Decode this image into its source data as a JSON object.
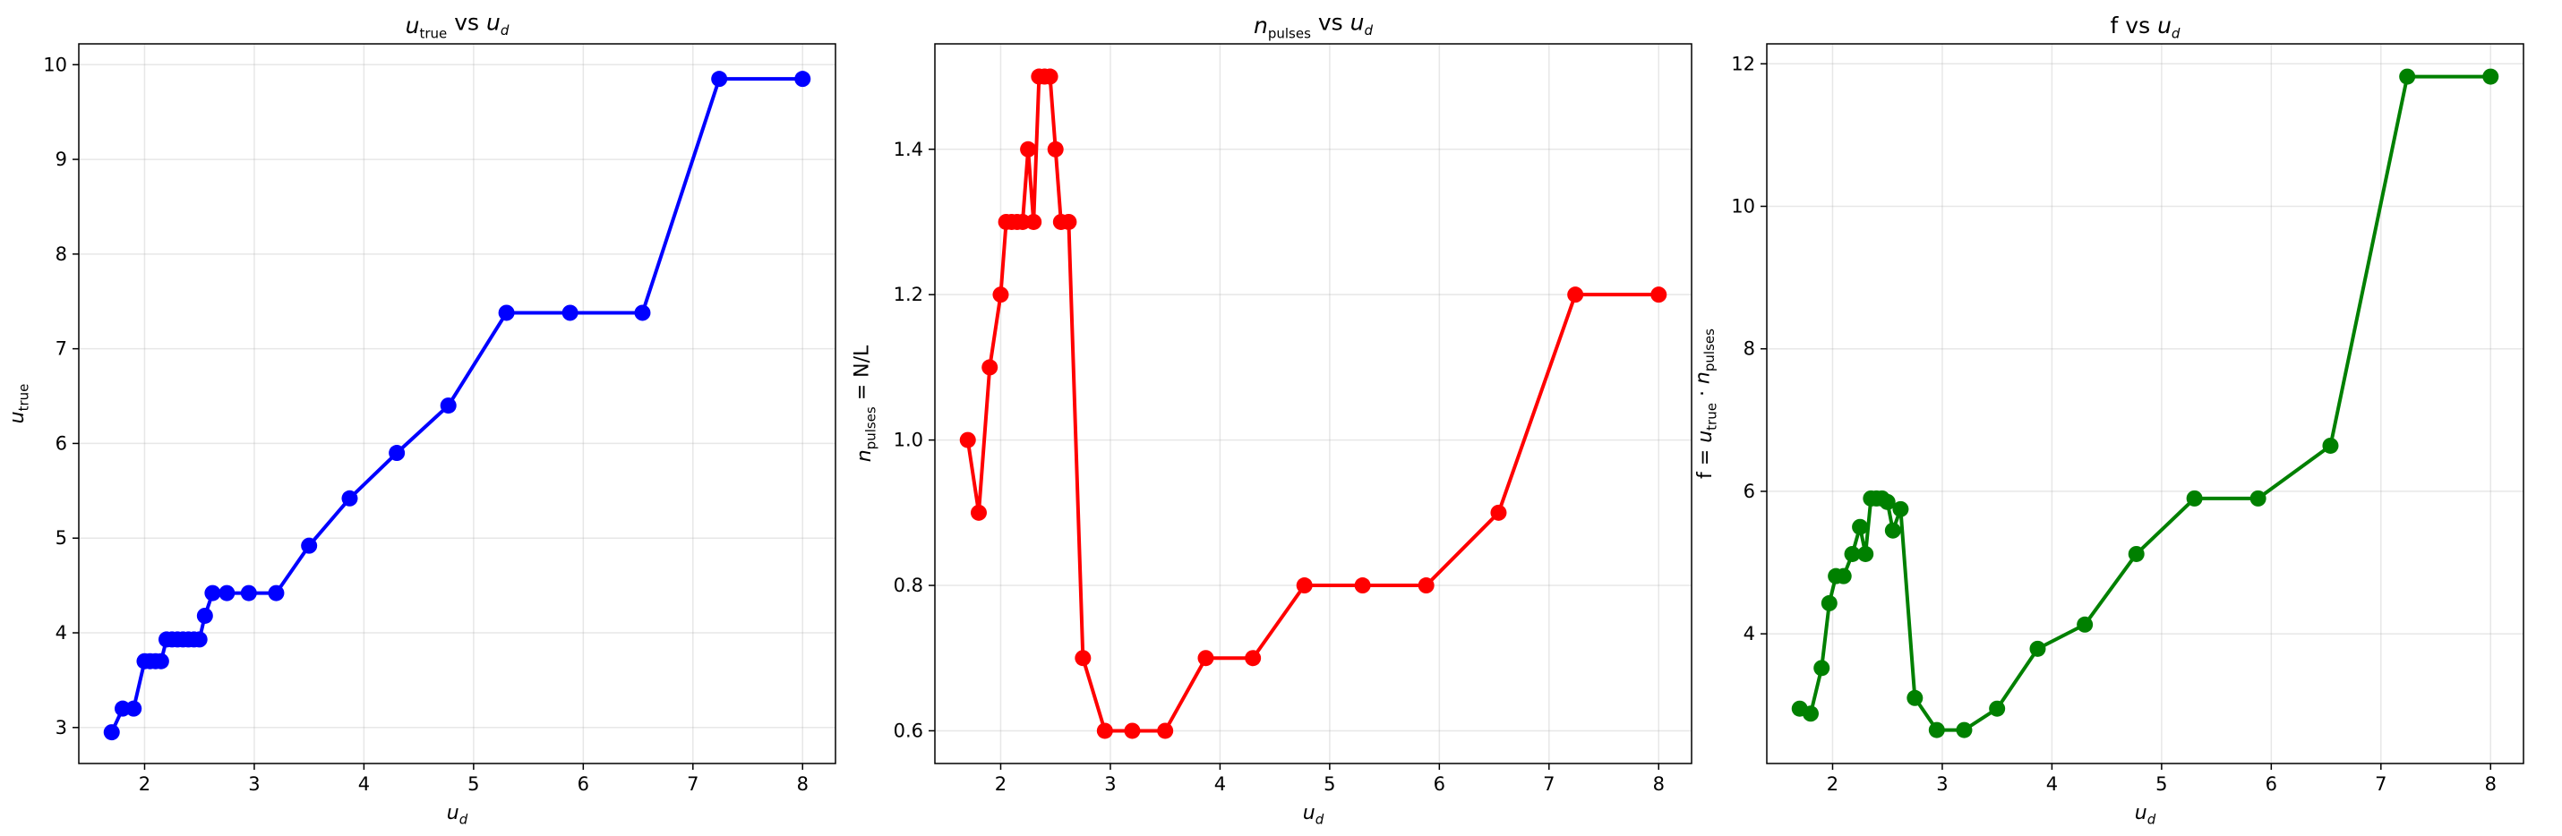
{
  "chart_data": [
    {
      "type": "line",
      "title": "u_true vs u_d",
      "xlabel": "u_d",
      "ylabel": "u_true",
      "xlim": [
        1.4,
        8.3
      ],
      "ylim": [
        2.62,
        10.22
      ],
      "xticks": [
        2,
        3,
        4,
        5,
        6,
        7,
        8
      ],
      "yticks": [
        3,
        4,
        5,
        6,
        7,
        8,
        9,
        10
      ],
      "grid": true,
      "color": "#0000ff",
      "series": [
        {
          "x": [
            1.7,
            1.8,
            1.9,
            2.0,
            2.05,
            2.1,
            2.15,
            2.2,
            2.25,
            2.3,
            2.35,
            2.4,
            2.45,
            2.5,
            2.55,
            2.62,
            2.75,
            2.95,
            3.2,
            3.5,
            3.87,
            4.3,
            4.77,
            5.3,
            5.88,
            6.54,
            7.24,
            8.0
          ],
          "y": [
            2.95,
            3.2,
            3.2,
            3.7,
            3.7,
            3.7,
            3.7,
            3.93,
            3.93,
            3.93,
            3.93,
            3.93,
            3.93,
            3.93,
            4.18,
            4.42,
            4.42,
            4.42,
            4.42,
            4.92,
            5.42,
            5.9,
            6.4,
            7.38,
            7.38,
            7.38,
            9.85,
            9.85
          ]
        }
      ]
    },
    {
      "type": "line",
      "title": "n_pulses vs u_d",
      "xlabel": "u_d",
      "ylabel": "n_pulses = N/L",
      "xlim": [
        1.4,
        8.3
      ],
      "ylim": [
        0.555,
        1.545
      ],
      "xticks": [
        2,
        3,
        4,
        5,
        6,
        7,
        8
      ],
      "yticks": [
        0.6,
        0.8,
        1.0,
        1.2,
        1.4
      ],
      "grid": true,
      "color": "#ff0000",
      "series": [
        {
          "x": [
            1.7,
            1.8,
            1.9,
            2.0,
            2.05,
            2.1,
            2.15,
            2.2,
            2.25,
            2.3,
            2.35,
            2.4,
            2.45,
            2.5,
            2.55,
            2.62,
            2.75,
            2.95,
            3.2,
            3.5,
            3.87,
            4.3,
            4.77,
            5.3,
            5.88,
            6.54,
            7.24,
            8.0
          ],
          "y": [
            1.0,
            0.9,
            1.1,
            1.2,
            1.3,
            1.3,
            1.3,
            1.3,
            1.4,
            1.3,
            1.5,
            1.5,
            1.5,
            1.4,
            1.3,
            1.3,
            0.7,
            0.6,
            0.6,
            0.6,
            0.7,
            0.7,
            0.8,
            0.8,
            0.8,
            0.9,
            1.2,
            1.2
          ]
        }
      ]
    },
    {
      "type": "line",
      "title": "f vs u_d",
      "xlabel": "u_d",
      "ylabel": "f = u_true · n_pulses",
      "xlim": [
        1.4,
        8.3
      ],
      "ylim": [
        2.18,
        12.28
      ],
      "xticks": [
        2,
        3,
        4,
        5,
        6,
        7,
        8
      ],
      "yticks": [
        4,
        6,
        8,
        10,
        12
      ],
      "grid": true,
      "color": "#008000",
      "series": [
        {
          "x": [
            1.7,
            1.8,
            1.9,
            1.97,
            2.03,
            2.1,
            2.18,
            2.25,
            2.3,
            2.35,
            2.4,
            2.45,
            2.5,
            2.55,
            2.62,
            2.75,
            2.95,
            3.2,
            3.5,
            3.87,
            4.3,
            4.77,
            5.3,
            5.88,
            6.54,
            7.24,
            8.0
          ],
          "y": [
            2.95,
            2.88,
            3.52,
            4.43,
            4.81,
            4.81,
            5.12,
            5.5,
            5.12,
            5.9,
            5.9,
            5.9,
            5.85,
            5.45,
            5.75,
            3.1,
            2.65,
            2.65,
            2.95,
            3.79,
            4.13,
            5.12,
            5.9,
            5.9,
            6.64,
            11.82,
            11.82
          ]
        }
      ]
    }
  ]
}
